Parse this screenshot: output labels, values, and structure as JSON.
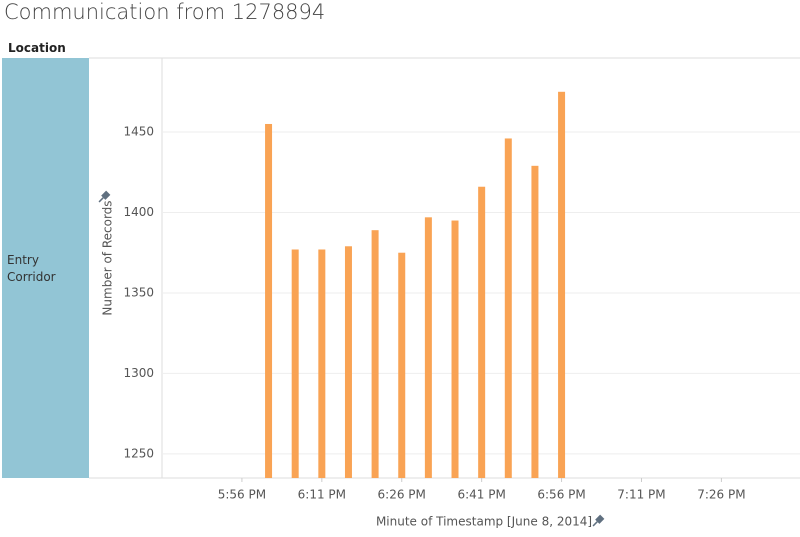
{
  "header": {
    "title": "Communication from 1278894",
    "row_header": "Location"
  },
  "chart_data": {
    "type": "bar",
    "row_label": "Entry Corridor",
    "x_label": "Minute of Timestamp [June 8, 2014]",
    "y_label": "Number of Records",
    "x": [
      "6:01 PM",
      "6:06 PM",
      "6:11 PM",
      "6:16 PM",
      "6:21 PM",
      "6:26 PM",
      "6:31 PM",
      "6:36 PM",
      "6:41 PM",
      "6:46 PM",
      "6:51 PM",
      "6:56 PM"
    ],
    "values": [
      1455,
      1377,
      1377,
      1379,
      1389,
      1375,
      1397,
      1395,
      1416,
      1446,
      1429,
      1475
    ],
    "color": "#f9a354",
    "xlim": [
      "5:41 PM",
      "7:37 PM"
    ],
    "xticks": [
      "5:56 PM",
      "6:11 PM",
      "6:26 PM",
      "6:41 PM",
      "6:56 PM",
      "7:11 PM",
      "7:26 PM"
    ],
    "ylim": [
      1235,
      1496
    ],
    "yticks": [
      1250,
      1300,
      1350,
      1400,
      1450
    ],
    "grid": true
  }
}
